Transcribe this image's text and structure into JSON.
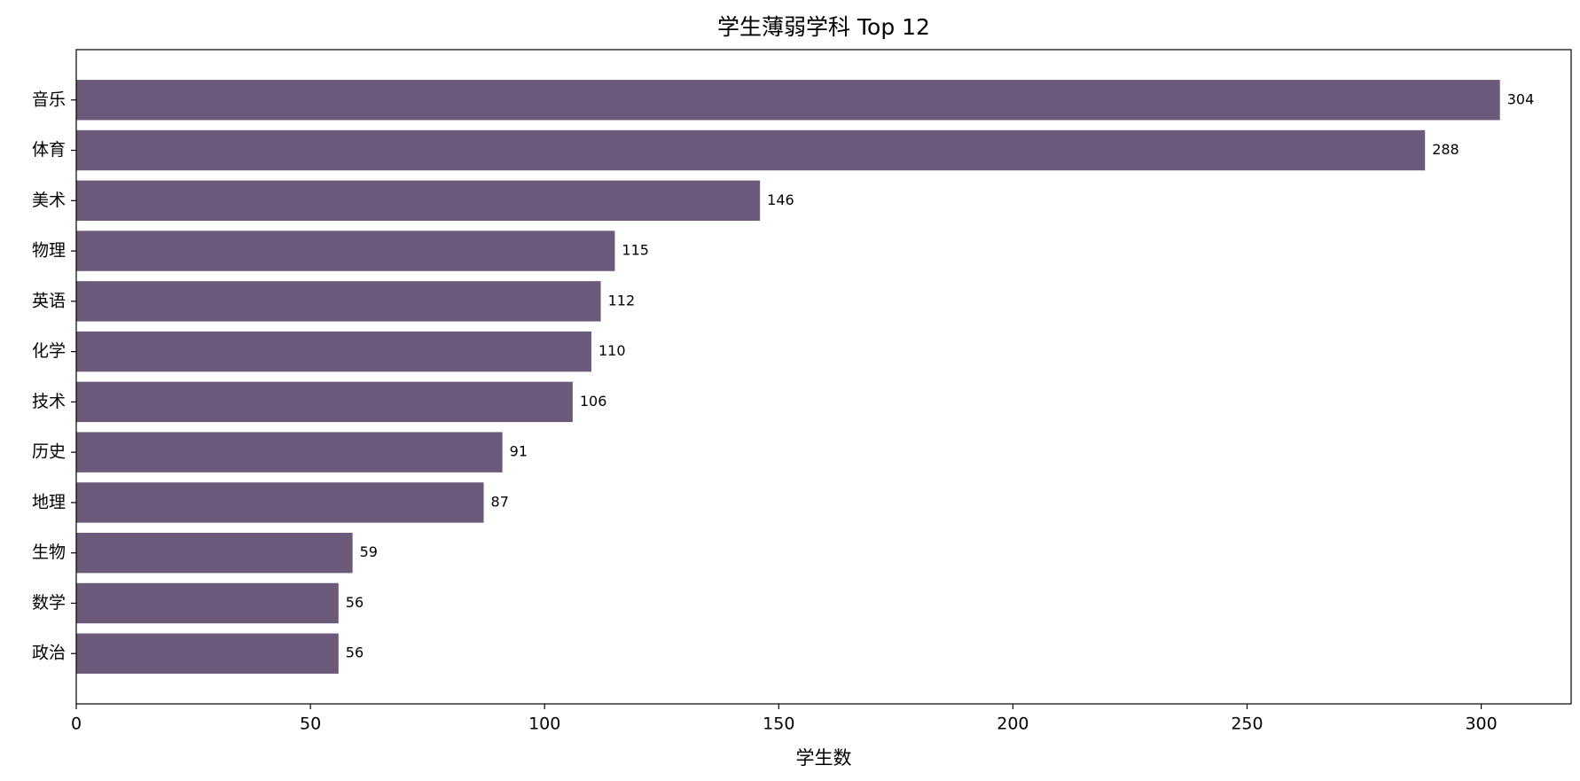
{
  "chart_data": {
    "type": "barh",
    "title": "学生薄弱学科 Top 12",
    "x_label": "学生数",
    "categories": [
      "音乐",
      "体育",
      "美术",
      "物理",
      "英语",
      "化学",
      "技术",
      "历史",
      "地理",
      "生物",
      "数学",
      "政治"
    ],
    "values": [
      304,
      288,
      146,
      115,
      112,
      110,
      106,
      91,
      87,
      59,
      56,
      56
    ],
    "color": "#6c5a7a",
    "xlim": [
      0,
      319.2
    ],
    "xticks": [
      0,
      50,
      100,
      150,
      200,
      250,
      300
    ],
    "grid": false
  }
}
